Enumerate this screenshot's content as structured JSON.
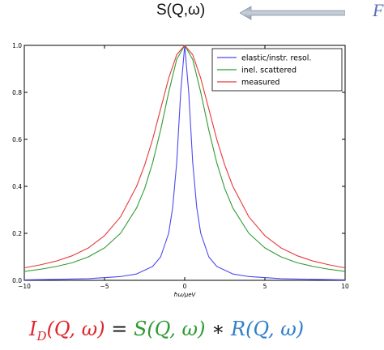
{
  "header": {
    "label": "S(Q,ω)",
    "partial_text": "F"
  },
  "chart_data": {
    "type": "line",
    "xlabel": "ħω/μeV",
    "ylabel": "",
    "xlim": [
      -10,
      10
    ],
    "ylim": [
      0,
      1.0
    ],
    "x_ticks": [
      -10,
      -5,
      0,
      5,
      10
    ],
    "x_tick_labels": [
      "−10",
      "−5",
      "0",
      "5",
      "10"
    ],
    "y_ticks": [
      0.0,
      0.2,
      0.4,
      0.6,
      0.8,
      1.0
    ],
    "y_tick_labels": [
      "0.0",
      "0.2",
      "0.4",
      "0.6",
      "0.8",
      "1.0"
    ],
    "legend_position": "top-right",
    "series": [
      {
        "name": "elastic/instr. resol.",
        "color": "#4a4af0",
        "x": [
          -10,
          -8,
          -6,
          -4,
          -3,
          -2,
          -1.5,
          -1,
          -0.75,
          -0.5,
          -0.25,
          0,
          0.25,
          0.5,
          0.75,
          1,
          1.5,
          2,
          3,
          4,
          6,
          8,
          10
        ],
        "y": [
          0.002,
          0.004,
          0.007,
          0.016,
          0.027,
          0.059,
          0.1,
          0.2,
          0.31,
          0.5,
          0.8,
          1.0,
          0.8,
          0.5,
          0.31,
          0.2,
          0.1,
          0.059,
          0.027,
          0.016,
          0.007,
          0.004,
          0.002
        ]
      },
      {
        "name": "inel. scattered",
        "color": "#2e9b33",
        "x": [
          -10,
          -9,
          -8,
          -7,
          -6,
          -5,
          -4,
          -3,
          -2.5,
          -2,
          -1.5,
          -1,
          -0.5,
          0,
          0.5,
          1,
          1.5,
          2,
          2.5,
          3,
          4,
          5,
          6,
          7,
          8,
          9,
          10
        ],
        "y": [
          0.038,
          0.047,
          0.059,
          0.075,
          0.1,
          0.138,
          0.2,
          0.308,
          0.39,
          0.5,
          0.64,
          0.8,
          0.94,
          1.0,
          0.94,
          0.8,
          0.64,
          0.5,
          0.39,
          0.308,
          0.2,
          0.138,
          0.1,
          0.075,
          0.059,
          0.047,
          0.038
        ]
      },
      {
        "name": "measured",
        "color": "#e8383a",
        "x": [
          -10,
          -9,
          -8,
          -7,
          -6,
          -5,
          -4,
          -3,
          -2.5,
          -2,
          -1.5,
          -1,
          -0.5,
          0,
          0.5,
          1,
          1.5,
          2,
          2.5,
          3,
          4,
          5,
          6,
          7,
          8,
          9,
          10
        ],
        "y": [
          0.053,
          0.066,
          0.082,
          0.105,
          0.138,
          0.19,
          0.27,
          0.4,
          0.49,
          0.6,
          0.73,
          0.86,
          0.96,
          1.0,
          0.96,
          0.86,
          0.73,
          0.6,
          0.49,
          0.4,
          0.27,
          0.19,
          0.138,
          0.105,
          0.082,
          0.066,
          0.053
        ]
      }
    ]
  },
  "equation": {
    "lhs": "I",
    "lhs_sub": "D",
    "lhs_args": "(Q, ω)",
    "equals": "=",
    "s_term": "S(Q, ω)",
    "times": "∗",
    "r_term": "R(Q, ω)"
  }
}
